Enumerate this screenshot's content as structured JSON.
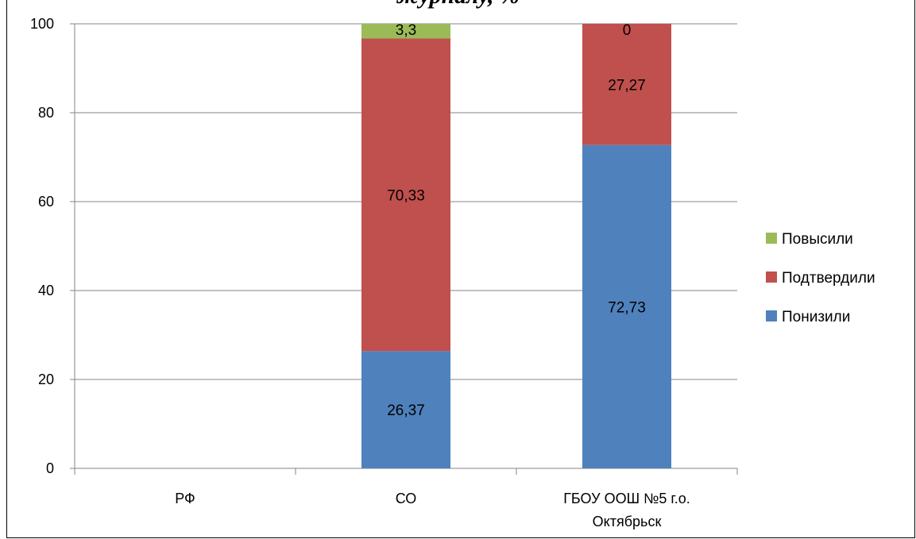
{
  "chart_data": {
    "type": "bar",
    "stacked": true,
    "title": "журналу, %",
    "categories": [
      "РФ",
      "СО",
      "ГБОУ ООШ №5 г.о. Октябрьск"
    ],
    "category_lines": [
      [
        "РФ"
      ],
      [
        "СО"
      ],
      [
        "ГБОУ ООШ №5 г.о.",
        "Октябрьск"
      ]
    ],
    "series": [
      {
        "name": "Понизили",
        "color": "#4F81BD",
        "values": [
          null,
          26.37,
          72.73
        ],
        "labels": [
          "",
          "26,37",
          "72,73"
        ]
      },
      {
        "name": "Подтвердили",
        "color": "#C0504D",
        "values": [
          null,
          70.33,
          27.27
        ],
        "labels": [
          "",
          "70,33",
          "27,27"
        ]
      },
      {
        "name": "Повысили",
        "color": "#9BBB59",
        "values": [
          null,
          3.3,
          0
        ],
        "labels": [
          "",
          "3,3",
          "0"
        ]
      }
    ],
    "ylim": [
      0,
      100
    ],
    "yticks": [
      0,
      20,
      40,
      60,
      80,
      100
    ],
    "grid": true,
    "legend_position": "right"
  }
}
